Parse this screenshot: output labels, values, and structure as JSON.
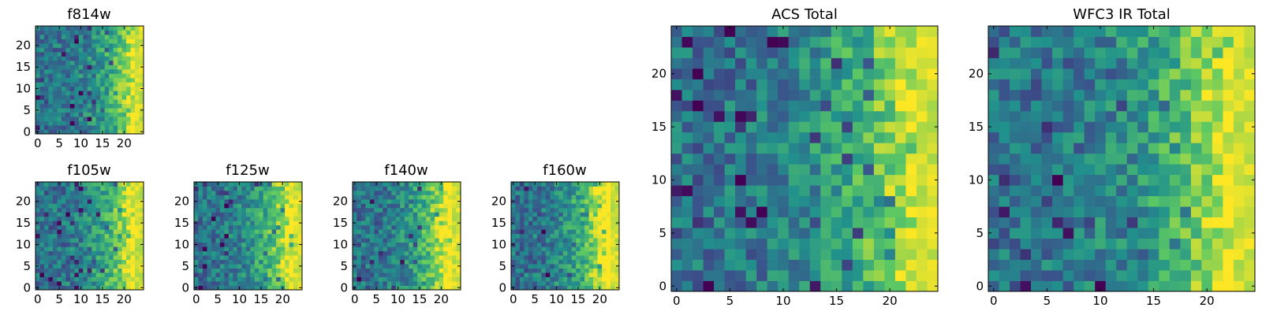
{
  "colormap": [
    "#440154",
    "#3b528b",
    "#21918c",
    "#5ec962",
    "#fde725"
  ],
  "chart_data": [
    {
      "type": "heatmap",
      "title": "f814w",
      "xticks": [
        0,
        5,
        10,
        15,
        20
      ],
      "yticks": [
        0,
        5,
        10,
        15,
        20
      ],
      "xlim": [
        0,
        25
      ],
      "ylim": [
        0,
        25
      ],
      "grid_size": 25,
      "seed": 11,
      "edge_strength": 0.7
    },
    {
      "type": "heatmap",
      "title": "f105w",
      "xticks": [
        0,
        5,
        10,
        15,
        20
      ],
      "yticks": [
        0,
        5,
        10,
        15,
        20
      ],
      "xlim": [
        0,
        25
      ],
      "ylim": [
        0,
        25
      ],
      "grid_size": 25,
      "seed": 23,
      "edge_strength": 0.85
    },
    {
      "type": "heatmap",
      "title": "f125w",
      "xticks": [
        0,
        5,
        10,
        15,
        20
      ],
      "yticks": [
        0,
        5,
        10,
        15,
        20
      ],
      "xlim": [
        0,
        25
      ],
      "ylim": [
        0,
        25
      ],
      "grid_size": 25,
      "seed": 37,
      "edge_strength": 0.85
    },
    {
      "type": "heatmap",
      "title": "f140w",
      "xticks": [
        0,
        5,
        10,
        15,
        20
      ],
      "yticks": [
        0,
        5,
        10,
        15,
        20
      ],
      "xlim": [
        0,
        25
      ],
      "ylim": [
        0,
        25
      ],
      "grid_size": 25,
      "seed": 41,
      "edge_strength": 0.9
    },
    {
      "type": "heatmap",
      "title": "f160w",
      "xticks": [
        0,
        5,
        10,
        15,
        20
      ],
      "yticks": [
        0,
        5,
        10,
        15,
        20
      ],
      "xlim": [
        0,
        25
      ],
      "ylim": [
        0,
        25
      ],
      "grid_size": 25,
      "seed": 53,
      "edge_strength": 0.95
    },
    {
      "type": "heatmap",
      "title": "ACS Total",
      "xticks": [
        0,
        5,
        10,
        15,
        20
      ],
      "yticks": [
        0,
        5,
        10,
        15,
        20
      ],
      "xlim": [
        0,
        25
      ],
      "ylim": [
        0,
        25
      ],
      "grid_size": 25,
      "seed": 67,
      "edge_strength": 0.75
    },
    {
      "type": "heatmap",
      "title": "WFC3 IR Total",
      "xticks": [
        0,
        5,
        10,
        15,
        20
      ],
      "yticks": [
        0,
        5,
        10,
        15,
        20
      ],
      "xlim": [
        0,
        25
      ],
      "ylim": [
        0,
        25
      ],
      "grid_size": 25,
      "seed": 79,
      "edge_strength": 0.8
    }
  ]
}
